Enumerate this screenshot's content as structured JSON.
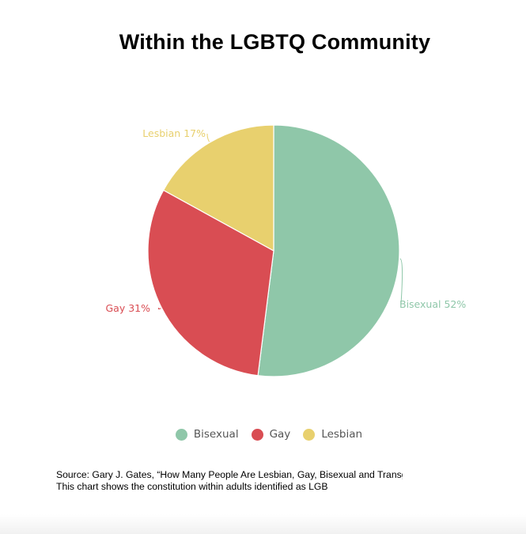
{
  "chart_data": {
    "type": "pie",
    "title": "Within the LGBTQ Community",
    "series": [
      {
        "name": "Bisexual",
        "value": 52,
        "label": "Bisexual 52%",
        "color": "#8fc7a9"
      },
      {
        "name": "Gay",
        "value": 31,
        "label": "Gay 31%",
        "color": "#d94d53"
      },
      {
        "name": "Lesbian",
        "value": 17,
        "label": "Lesbian 17%",
        "color": "#e8d06e"
      }
    ],
    "legend": {
      "placement": "bottom"
    }
  },
  "source_text": "Source: Gary J. Gates, “How Many People Are Lesbian, Gay, Bisexual and Transgender?”",
  "description_text": "This chart shows the constitution within  adults identified as LGB"
}
